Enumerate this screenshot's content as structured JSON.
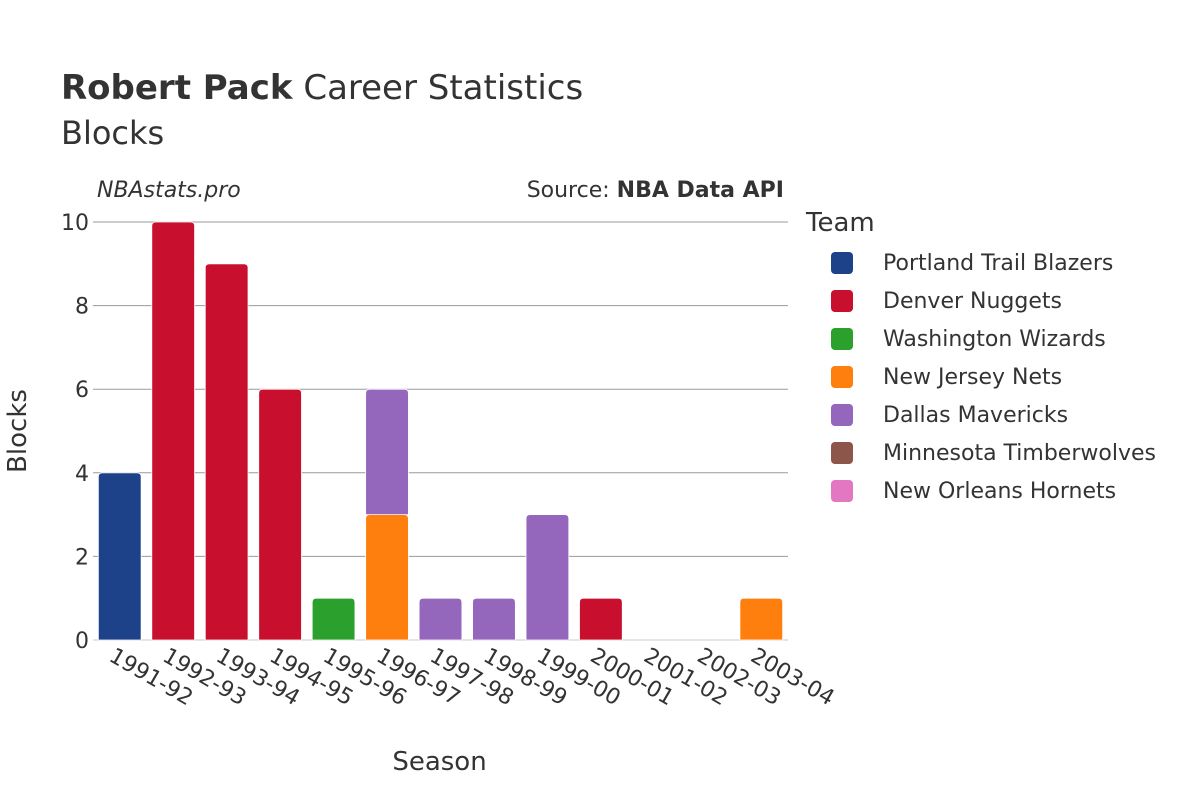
{
  "header": {
    "player": "Robert Pack",
    "title_rest": "Career Statistics",
    "subtitle": "Blocks",
    "watermark": "NBAstats.pro",
    "source_prefix": "Source: ",
    "source_name": "NBA Data API"
  },
  "legend": {
    "title": "Team",
    "items": [
      {
        "label": "Portland Trail Blazers",
        "color": "#1d428a"
      },
      {
        "label": "Denver Nuggets",
        "color": "#c8102e"
      },
      {
        "label": "Washington Wizards",
        "color": "#2ca02c"
      },
      {
        "label": "New Jersey Nets",
        "color": "#ff7f0e"
      },
      {
        "label": "Dallas Mavericks",
        "color": "#9467bd"
      },
      {
        "label": "Minnesota Timberwolves",
        "color": "#8c564b"
      },
      {
        "label": "New Orleans Hornets",
        "color": "#e377c2"
      }
    ]
  },
  "chart_data": {
    "type": "bar",
    "stacked": true,
    "xlabel": "Season",
    "ylabel": "Blocks",
    "ylim": [
      0,
      10
    ],
    "yticks": [
      0,
      2,
      4,
      6,
      8,
      10
    ],
    "grid": true,
    "legend_position": "right",
    "categories": [
      "1991-92",
      "1992-93",
      "1993-94",
      "1994-95",
      "1995-96",
      "1996-97",
      "1997-98",
      "1998-99",
      "1999-00",
      "2000-01",
      "2001-02",
      "2002-03",
      "2003-04"
    ],
    "series": [
      {
        "name": "Portland Trail Blazers",
        "color": "#1d428a",
        "values": [
          4,
          0,
          0,
          0,
          0,
          0,
          0,
          0,
          0,
          0,
          0,
          0,
          0
        ]
      },
      {
        "name": "Denver Nuggets",
        "color": "#c8102e",
        "values": [
          0,
          10,
          9,
          6,
          0,
          0,
          0,
          0,
          0,
          1,
          0,
          0,
          0
        ]
      },
      {
        "name": "Washington Wizards",
        "color": "#2ca02c",
        "values": [
          0,
          0,
          0,
          0,
          1,
          0,
          0,
          0,
          0,
          0,
          0,
          0,
          0
        ]
      },
      {
        "name": "New Jersey Nets",
        "color": "#ff7f0e",
        "values": [
          0,
          0,
          0,
          0,
          0,
          3,
          0,
          0,
          0,
          0,
          0,
          0,
          1
        ]
      },
      {
        "name": "Dallas Mavericks",
        "color": "#9467bd",
        "values": [
          0,
          0,
          0,
          0,
          0,
          3,
          1,
          1,
          3,
          0,
          0,
          0,
          0
        ]
      },
      {
        "name": "Minnesota Timberwolves",
        "color": "#8c564b",
        "values": [
          0,
          0,
          0,
          0,
          0,
          0,
          0,
          0,
          0,
          0,
          0,
          0,
          0
        ]
      },
      {
        "name": "New Orleans Hornets",
        "color": "#e377c2",
        "values": [
          0,
          0,
          0,
          0,
          0,
          0,
          0,
          0,
          0,
          0,
          0,
          0,
          0
        ]
      }
    ]
  }
}
